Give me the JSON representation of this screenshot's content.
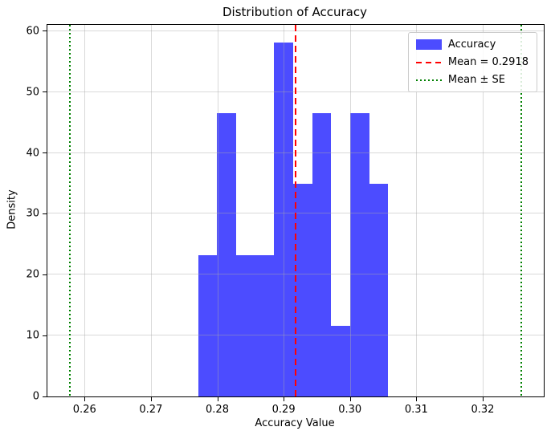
{
  "chart_data": {
    "type": "bar",
    "subtype": "histogram",
    "title": "Distribution of Accuracy",
    "xlabel": "Accuracy Value",
    "ylabel": "Density",
    "xlim": [
      0.2544,
      0.3292
    ],
    "ylim": [
      0,
      61.05
    ],
    "x_ticks": [
      0.26,
      0.27,
      0.28,
      0.29,
      0.3,
      0.31,
      0.32
    ],
    "x_tick_labels": [
      "0.26",
      "0.27",
      "0.28",
      "0.29",
      "0.30",
      "0.31",
      "0.32"
    ],
    "y_ticks": [
      0,
      10,
      20,
      30,
      40,
      50,
      60
    ],
    "y_tick_labels": [
      "0",
      "10",
      "20",
      "30",
      "40",
      "50",
      "60"
    ],
    "grid": true,
    "bin_edges": [
      0.2771,
      0.27997,
      0.28283,
      0.2857,
      0.28857,
      0.29143,
      0.2943,
      0.29717,
      0.30003,
      0.3029,
      0.30577
    ],
    "densities": [
      23.26,
      46.51,
      23.26,
      23.26,
      58.14,
      34.88,
      46.51,
      11.63,
      46.51,
      34.88
    ],
    "counts": [
      2,
      4,
      2,
      2,
      5,
      3,
      4,
      1,
      4,
      3
    ],
    "bar_color": "#0000FF",
    "bar_alpha": 0.7,
    "mean": 0.2918,
    "mean_line_color": "#FF0000",
    "mean_line_style": "dashed",
    "mean_minus_se": 0.2578,
    "mean_plus_se": 0.3258,
    "se_line_color": "#008000",
    "se_line_style": "dotted",
    "legend": {
      "position": "upper right",
      "items": [
        {
          "label": "Accuracy",
          "swatch": "patch",
          "color": "#0000FF"
        },
        {
          "label": "Mean = 0.2918",
          "swatch": "dashed-line",
          "color": "#FF0000"
        },
        {
          "label": "Mean ± SE",
          "swatch": "dotted-line",
          "color": "#008000"
        }
      ]
    }
  }
}
